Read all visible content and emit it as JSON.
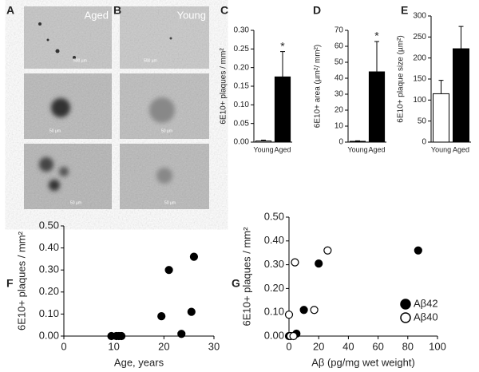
{
  "figure": {
    "panel_labels": [
      "A",
      "B",
      "C",
      "D",
      "E",
      "F",
      "G"
    ],
    "image_labels": [
      "Aged",
      "Young"
    ],
    "scale_bars": [
      "500 µm",
      "50 µm",
      "50 µm",
      "500 µm",
      "50 µm",
      "50 µm"
    ]
  },
  "chart_data": [
    {
      "type": "bar",
      "y_label": "6E10+ plaques / mm²",
      "categories": [
        "Young",
        "Aged"
      ],
      "values": [
        0.003,
        0.175
      ],
      "errors": [
        0.002,
        0.068
      ],
      "colors": [
        "#ffffff",
        "#000000"
      ],
      "annotation": "*",
      "ylim": [
        0,
        0.3
      ],
      "yticks": [
        {
          "value": 0,
          "label": "0.00"
        },
        {
          "value": 0.05,
          "label": "0.05"
        },
        {
          "value": 0.1,
          "label": "0.10"
        },
        {
          "value": 0.15,
          "label": "0.15"
        },
        {
          "value": 0.2,
          "label": "0.20"
        },
        {
          "value": 0.25,
          "label": "0.25"
        },
        {
          "value": 0.3,
          "label": "0.30"
        }
      ]
    },
    {
      "type": "bar",
      "y_label": "6E10+ area (µm²/ mm²)",
      "categories": [
        "Young",
        "Aged"
      ],
      "values": [
        0.5,
        44
      ],
      "errors": [
        0.3,
        19
      ],
      "colors": [
        "#ffffff",
        "#000000"
      ],
      "annotation": "*",
      "ylim": [
        0,
        70
      ],
      "yticks": [
        0,
        10,
        20,
        30,
        40,
        50,
        60,
        70
      ]
    },
    {
      "type": "bar",
      "y_label": "6E10+ plaque size (µm²)",
      "categories": [
        "Young",
        "Aged"
      ],
      "values": [
        115,
        222
      ],
      "errors": [
        32,
        53
      ],
      "colors": [
        "#ffffff",
        "#000000"
      ],
      "ylim": [
        0,
        300
      ],
      "yticks": [
        0,
        50,
        100,
        150,
        200,
        250,
        300
      ]
    },
    {
      "type": "scatter",
      "x_label": "Age, years",
      "y_label": "6E10+ plaques / mm²",
      "series": [
        {
          "color": "#000000",
          "marker_fill": "#000000",
          "x": [
            9.5,
            10.5,
            11,
            11.5,
            19.5,
            21,
            23.5,
            25.5,
            26
          ],
          "values": [
            0,
            0,
            0,
            0,
            0.09,
            0.3,
            0.01,
            0.11,
            0.36
          ]
        }
      ],
      "xlim": [
        0,
        30
      ],
      "xticks": [
        0,
        10,
        20,
        30
      ],
      "ylim": [
        0,
        0.5
      ],
      "yticks": [
        {
          "value": 0,
          "label": "0.00"
        },
        {
          "value": 0.1,
          "label": "0.10"
        },
        {
          "value": 0.2,
          "label": "0.20"
        },
        {
          "value": 0.3,
          "label": "0.30"
        },
        {
          "value": 0.4,
          "label": "0.40"
        },
        {
          "value": 0.5,
          "label": "0.50"
        }
      ]
    },
    {
      "type": "scatter",
      "x_label": "Aβ   (pg/mg wet weight)",
      "y_label": "6E10+ plaques / mm²",
      "legend": "lower right",
      "series": [
        {
          "name": "Aβ42",
          "color": "#000000",
          "marker_fill": "#000000",
          "x": [
            0,
            5,
            10,
            20,
            87
          ],
          "values": [
            0,
            0.01,
            0.11,
            0.305,
            0.36
          ]
        },
        {
          "name": "Aβ40",
          "color": "#000000",
          "marker_fill": "#ffffff",
          "x": [
            0,
            1,
            3,
            4,
            17,
            26
          ],
          "values": [
            0.09,
            0,
            0,
            0.31,
            0.11,
            0.36
          ]
        }
      ],
      "xlim": [
        0,
        100
      ],
      "xticks": [
        0,
        20,
        40,
        60,
        80,
        100
      ],
      "ylim": [
        0,
        0.5
      ],
      "yticks": [
        {
          "value": 0,
          "label": "0.00"
        },
        {
          "value": 0.1,
          "label": "0.10"
        },
        {
          "value": 0.2,
          "label": "0.20"
        },
        {
          "value": 0.3,
          "label": "0.30"
        },
        {
          "value": 0.4,
          "label": "0.40"
        },
        {
          "value": 0.5,
          "label": "0.50"
        }
      ]
    }
  ]
}
